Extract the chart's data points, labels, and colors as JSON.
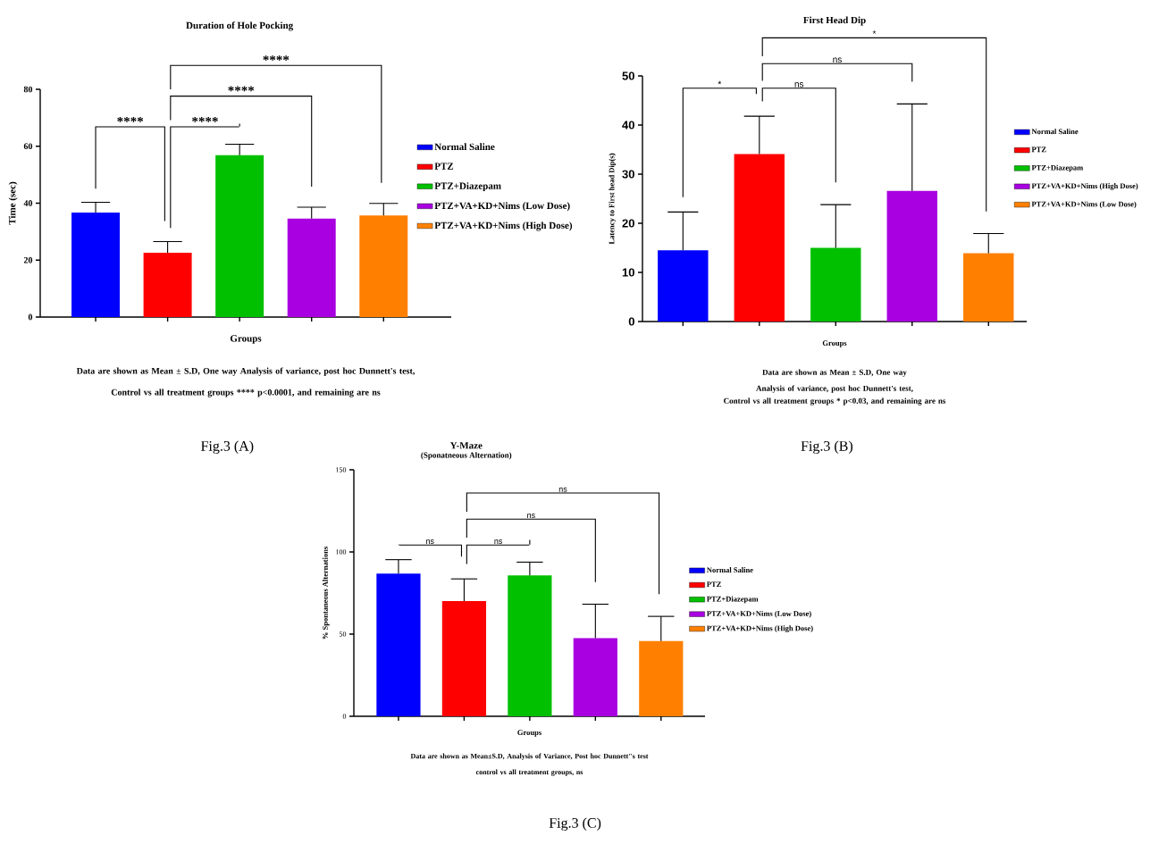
{
  "chart_data": [
    {
      "type": "bar",
      "title": "Duration of Hole Pocking",
      "xlabel": "Groups",
      "ylabel": "Time (sec)",
      "categories": [
        null,
        null,
        null,
        null,
        null
      ],
      "series": [
        {
          "name": "Normal Saline",
          "color": "#0000ff",
          "values": [
            36.7,
            null,
            null,
            null,
            null
          ],
          "errors": [
            [
              36.7,
              40.3
            ],
            null,
            null,
            null,
            null
          ]
        },
        {
          "name": "PTZ",
          "color": "#ff0000",
          "values": [
            null,
            22.6,
            null,
            null,
            null
          ],
          "errors": [
            null,
            [
              22.6,
              26.5
            ],
            null,
            null,
            null
          ]
        },
        {
          "name": "PTZ+Diazepam",
          "color": "#00c000",
          "values": [
            null,
            null,
            56.9,
            null,
            null
          ],
          "errors": [
            null,
            null,
            [
              56.9,
              60.7
            ],
            null,
            null
          ]
        },
        {
          "name": "PTZ+VA+KD+Nims (Low Dose)",
          "color": "#a800e0",
          "values": [
            null,
            null,
            null,
            34.6,
            null
          ],
          "errors": [
            null,
            null,
            null,
            [
              34.6,
              38.6
            ],
            null
          ]
        },
        {
          "name": "PTZ+VA+KD+Nims (High Dose)",
          "color": "#ff8000",
          "values": [
            null,
            null,
            null,
            null,
            35.7
          ],
          "errors": [
            null,
            null,
            null,
            null,
            [
              35.7,
              39.9
            ]
          ]
        }
      ],
      "ylim": [
        0,
        80
      ],
      "yticks": [
        0,
        20,
        40,
        60,
        80
      ],
      "legend": "right",
      "tick_labels": "y",
      "annotations": [
        "****",
        "****",
        "****",
        "****",
        "Data are shown as Mean ± S.D, One way Analysis of variance, post hoc Dunnett's test,",
        "Control vs all treatment groups **** p<0.0001, and remaining are ns",
        "Fig.3 (A)"
      ]
    },
    {
      "type": "bar",
      "title": "First Head Dip",
      "xlabel": "Groups",
      "ylabel": "Latency to First head Dip(s)",
      "categories": [
        null,
        null,
        null,
        null,
        null
      ],
      "series": [
        {
          "name": "Normal Saline",
          "color": "#0000ff",
          "values": [
            14.5,
            null,
            null,
            null,
            null
          ],
          "errors": [
            [
              14.5,
              22.3
            ],
            null,
            null,
            null,
            null
          ]
        },
        {
          "name": "PTZ",
          "color": "#ff0000",
          "values": [
            null,
            34.1,
            null,
            null,
            null
          ],
          "errors": [
            null,
            [
              34.1,
              41.8
            ],
            null,
            null,
            null
          ]
        },
        {
          "name": "PTZ+Diazepam",
          "color": "#00c000",
          "values": [
            null,
            null,
            15.0,
            null,
            null
          ],
          "errors": [
            null,
            null,
            [
              15.0,
              23.8
            ],
            null,
            null
          ]
        },
        {
          "name": "PTZ+VA+KD+Nims (High Dose)",
          "color": "#a800e0",
          "values": [
            null,
            null,
            null,
            26.6,
            null
          ],
          "errors": [
            null,
            null,
            null,
            [
              26.6,
              44.3
            ],
            null
          ]
        },
        {
          "name": "PTZ+VA+KD+Nims (Low Dose)",
          "color": "#ff8000",
          "values": [
            null,
            null,
            null,
            null,
            13.9
          ],
          "errors": [
            null,
            null,
            null,
            null,
            [
              13.9,
              17.9
            ]
          ]
        }
      ],
      "ylim": [
        0,
        50
      ],
      "yticks": [
        0,
        10,
        20,
        30,
        40,
        50
      ],
      "legend": "right",
      "tick_labels": "y",
      "annotations": [
        "*",
        "ns",
        "ns",
        "*",
        "Data are shown as Mean ± S.D, One way Analysis of variance, post hoc Dunnett's test,",
        "Control vs all treatment groups * p<0.03, and remaining are ns",
        "Fig.3 (B)"
      ]
    },
    {
      "type": "bar",
      "title": "Y-Maze",
      "subtitle": "(Sponatneous Alternation)",
      "xlabel": "Groups",
      "ylabel": "% Spontaneous Alternations",
      "categories": [
        null,
        null,
        null,
        null,
        null
      ],
      "series": [
        {
          "name": "Normal Saline",
          "color": "#0000ff",
          "values": [
            86.8,
            null,
            null,
            null,
            null
          ],
          "errors": [
            [
              86.8,
              95.3
            ],
            null,
            null,
            null,
            null
          ]
        },
        {
          "name": "PTZ",
          "color": "#ff0000",
          "values": [
            null,
            70.1,
            null,
            null,
            null
          ],
          "errors": [
            null,
            [
              70.1,
              83.6
            ],
            null,
            null,
            null
          ]
        },
        {
          "name": "PTZ+Diazepam",
          "color": "#00c000",
          "values": [
            null,
            null,
            85.7,
            null,
            null
          ],
          "errors": [
            null,
            null,
            [
              85.7,
              93.8
            ],
            null,
            null
          ]
        },
        {
          "name": "PTZ+VA+KD+Nims (Low Dose)",
          "color": "#a800e0",
          "values": [
            null,
            null,
            null,
            47.5,
            null
          ],
          "errors": [
            null,
            null,
            null,
            [
              47.5,
              68.2
            ],
            null
          ]
        },
        {
          "name": "PTZ+VA+KD+Nims (High Dose)",
          "color": "#ff8000",
          "values": [
            null,
            null,
            null,
            null,
            45.8
          ],
          "errors": [
            null,
            null,
            null,
            null,
            [
              45.8,
              60.8
            ]
          ]
        }
      ],
      "ylim": [
        0,
        150
      ],
      "yticks": [
        0,
        50,
        100,
        150
      ],
      "legend": "right",
      "tick_labels": "y",
      "annotations": [
        "ns",
        "ns",
        "ns",
        "ns",
        "Data are shown as Mean±S.D, Analysis of Variance, Post hoc Dunnett\"s test",
        "control vs all treatment groups, ns",
        "Fig.3 (C)"
      ]
    }
  ]
}
